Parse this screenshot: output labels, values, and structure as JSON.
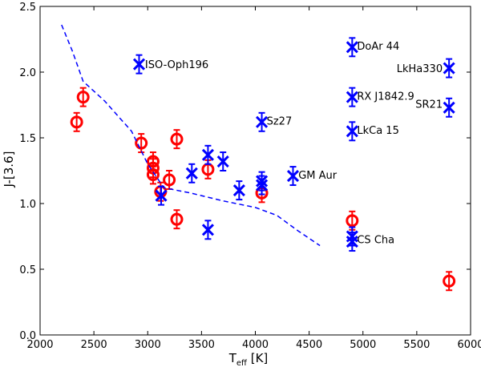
{
  "chart_data": {
    "type": "scatter",
    "xlabel_main": "T",
    "xlabel_sub": "eff",
    "xlabel_unit": " [K]",
    "ylabel": "J-[3.6]",
    "xlim": [
      2000,
      6000
    ],
    "ylim": [
      0.0,
      2.5
    ],
    "xticks": [
      "2000",
      "2500",
      "3000",
      "3500",
      "4000",
      "4500",
      "5000",
      "5500",
      "6000"
    ],
    "yticks": [
      "0.0",
      "0.5",
      "1.0",
      "1.5",
      "2.0",
      "2.5"
    ],
    "grid": false,
    "colors": {
      "circles": "#ff0000",
      "crosses": "#0000ff",
      "line": "#0000ff"
    },
    "series": [
      {
        "marker": "circle",
        "points": [
          {
            "x": 2340,
            "y": 1.62,
            "err": 0.07
          },
          {
            "x": 2400,
            "y": 1.81,
            "err": 0.07
          },
          {
            "x": 2940,
            "y": 1.46,
            "err": 0.07
          },
          {
            "x": 3050,
            "y": 1.32,
            "err": 0.07
          },
          {
            "x": 3050,
            "y": 1.27,
            "err": 0.07
          },
          {
            "x": 3050,
            "y": 1.22,
            "err": 0.07
          },
          {
            "x": 3120,
            "y": 1.09,
            "err": 0.07
          },
          {
            "x": 3200,
            "y": 1.18,
            "err": 0.07
          },
          {
            "x": 3270,
            "y": 1.49,
            "err": 0.07
          },
          {
            "x": 3270,
            "y": 0.88,
            "err": 0.07
          },
          {
            "x": 3560,
            "y": 1.26,
            "err": 0.07
          },
          {
            "x": 4060,
            "y": 1.08,
            "err": 0.07
          },
          {
            "x": 4900,
            "y": 0.87,
            "err": 0.07
          },
          {
            "x": 5800,
            "y": 0.41,
            "err": 0.07
          }
        ]
      },
      {
        "marker": "x",
        "points": [
          {
            "x": 2920,
            "y": 2.06,
            "err": 0.07
          },
          {
            "x": 3125,
            "y": 1.06,
            "err": 0.07
          },
          {
            "x": 3410,
            "y": 1.23,
            "err": 0.07
          },
          {
            "x": 3560,
            "y": 1.37,
            "err": 0.07
          },
          {
            "x": 3560,
            "y": 0.8,
            "err": 0.07
          },
          {
            "x": 3700,
            "y": 1.32,
            "err": 0.07
          },
          {
            "x": 3850,
            "y": 1.1,
            "err": 0.07
          },
          {
            "x": 4060,
            "y": 1.62,
            "err": 0.07
          },
          {
            "x": 4060,
            "y": 1.17,
            "err": 0.07
          },
          {
            "x": 4060,
            "y": 1.14,
            "err": 0.07
          },
          {
            "x": 4350,
            "y": 1.21,
            "err": 0.07
          },
          {
            "x": 4900,
            "y": 2.19,
            "err": 0.07
          },
          {
            "x": 4900,
            "y": 1.81,
            "err": 0.07
          },
          {
            "x": 4900,
            "y": 1.55,
            "err": 0.07
          },
          {
            "x": 4900,
            "y": 0.75,
            "err": 0.07
          },
          {
            "x": 4900,
            "y": 0.71,
            "err": 0.07
          },
          {
            "x": 5800,
            "y": 2.03,
            "err": 0.07
          },
          {
            "x": 5800,
            "y": 1.73,
            "err": 0.07
          }
        ]
      },
      {
        "marker": "dashed-line",
        "points": [
          {
            "x": 2200,
            "y": 2.36
          },
          {
            "x": 2300,
            "y": 2.16
          },
          {
            "x": 2400,
            "y": 1.93
          },
          {
            "x": 2600,
            "y": 1.78
          },
          {
            "x": 2850,
            "y": 1.55
          },
          {
            "x": 3000,
            "y": 1.3
          },
          {
            "x": 3150,
            "y": 1.12
          },
          {
            "x": 3400,
            "y": 1.08
          },
          {
            "x": 3700,
            "y": 1.02
          },
          {
            "x": 4000,
            "y": 0.97
          },
          {
            "x": 4200,
            "y": 0.91
          },
          {
            "x": 4400,
            "y": 0.79
          },
          {
            "x": 4600,
            "y": 0.68
          }
        ]
      }
    ],
    "annotations": [
      {
        "text": "ISO-Oph196",
        "x": 2975,
        "y": 2.06,
        "anchor": "start"
      },
      {
        "text": "DoAr 44",
        "x": 4945,
        "y": 2.2,
        "anchor": "start"
      },
      {
        "text": "LkHa330",
        "x": 5740,
        "y": 2.03,
        "anchor": "end"
      },
      {
        "text": "RX J1842.9",
        "x": 4945,
        "y": 1.82,
        "anchor": "start"
      },
      {
        "text": "SR21",
        "x": 5740,
        "y": 1.76,
        "anchor": "end"
      },
      {
        "text": "Sz27",
        "x": 4105,
        "y": 1.63,
        "anchor": "start"
      },
      {
        "text": "LkCa 15",
        "x": 4945,
        "y": 1.56,
        "anchor": "start"
      },
      {
        "text": "GM Aur",
        "x": 4400,
        "y": 1.22,
        "anchor": "start"
      },
      {
        "text": "CS Cha",
        "x": 4945,
        "y": 0.73,
        "anchor": "start"
      }
    ]
  }
}
